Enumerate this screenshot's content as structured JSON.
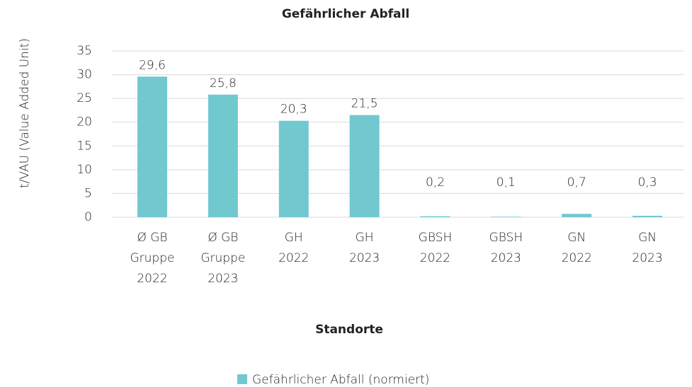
{
  "chart_data": {
    "type": "bar",
    "title": "Gefährlicher Abfall",
    "y_label": "t/VAU (Value Added Unit)",
    "x_label": "Standorte",
    "categories": [
      [
        "Ø GB",
        "Gruppe",
        "2022"
      ],
      [
        "Ø GB",
        "Gruppe",
        "2023"
      ],
      [
        "GH",
        "2022"
      ],
      [
        "GH",
        "2023"
      ],
      [
        "GBSH",
        "2022"
      ],
      [
        "GBSH",
        "2023"
      ],
      [
        "GN",
        "2022"
      ],
      [
        "GN",
        "2023"
      ]
    ],
    "series": [
      {
        "name": "Gefährlicher Abfall (normiert)",
        "color": "#72c8cf",
        "values": [
          29.6,
          25.8,
          20.3,
          21.5,
          0.2,
          0.1,
          0.7,
          0.3
        ],
        "value_labels": [
          "29,6",
          "25,8",
          "20,3",
          "21,5",
          "0,2",
          "0,1",
          "0,7",
          "0,3"
        ]
      }
    ],
    "ylim": [
      0,
      35
    ],
    "yticks": [
      0,
      5,
      10,
      15,
      20,
      25,
      30,
      35
    ],
    "grid": true,
    "legend": "bottom"
  }
}
